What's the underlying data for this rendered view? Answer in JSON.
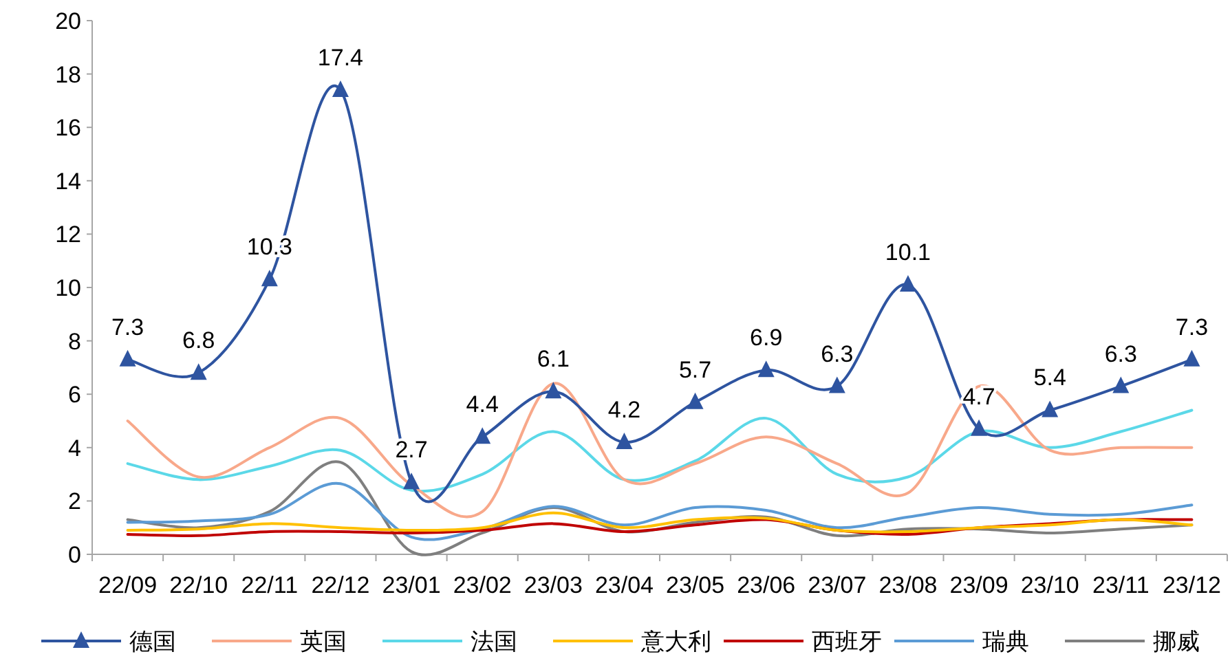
{
  "chart_data": {
    "type": "line",
    "categories": [
      "22/09",
      "22/10",
      "22/11",
      "22/12",
      "23/01",
      "23/02",
      "23/03",
      "23/04",
      "23/05",
      "23/06",
      "23/07",
      "23/08",
      "23/09",
      "23/10",
      "23/11",
      "23/12"
    ],
    "ylim": [
      0,
      20
    ],
    "yticks": [
      0,
      2,
      4,
      6,
      8,
      10,
      12,
      14,
      16,
      18,
      20
    ],
    "grid": false,
    "legend": "bottom",
    "line_style": "solid",
    "series": [
      {
        "name": "德国",
        "color": "#2e54a0",
        "marker": "triangle",
        "data_labels": true,
        "values": [
          7.3,
          6.8,
          10.3,
          17.4,
          2.7,
          4.4,
          6.1,
          4.2,
          5.7,
          6.9,
          6.3,
          10.1,
          4.7,
          5.4,
          6.3,
          7.3
        ]
      },
      {
        "name": "英国",
        "color": "#f8a88a",
        "marker": "none",
        "values": [
          5.0,
          2.9,
          4.0,
          5.1,
          2.6,
          1.6,
          6.4,
          2.8,
          3.4,
          4.4,
          3.4,
          2.3,
          6.3,
          3.9,
          4.0,
          4.0
        ]
      },
      {
        "name": "法国",
        "color": "#5bd8e8",
        "marker": "none",
        "values": [
          3.4,
          2.8,
          3.3,
          3.9,
          2.4,
          3.0,
          4.6,
          2.8,
          3.5,
          5.1,
          3.0,
          2.9,
          4.6,
          4.0,
          4.6,
          5.4
        ]
      },
      {
        "name": "意大利",
        "color": "#ffc000",
        "marker": "none",
        "values": [
          0.9,
          0.95,
          1.15,
          1.0,
          0.9,
          1.0,
          1.55,
          1.0,
          1.3,
          1.35,
          0.9,
          0.85,
          1.0,
          1.1,
          1.3,
          1.1
        ]
      },
      {
        "name": "西班牙",
        "color": "#c00000",
        "marker": "none",
        "values": [
          0.75,
          0.7,
          0.85,
          0.85,
          0.8,
          0.9,
          1.15,
          0.85,
          1.1,
          1.3,
          0.9,
          0.75,
          1.0,
          1.15,
          1.3,
          1.3
        ]
      },
      {
        "name": "瑞典",
        "color": "#5b9bd5",
        "marker": "none",
        "values": [
          1.2,
          1.25,
          1.5,
          2.65,
          0.65,
          0.95,
          1.8,
          1.1,
          1.75,
          1.65,
          1.0,
          1.4,
          1.75,
          1.5,
          1.5,
          1.85
        ]
      },
      {
        "name": "挪威",
        "color": "#7f7f7f",
        "marker": "none",
        "values": [
          1.3,
          1.0,
          1.6,
          3.45,
          0.1,
          0.8,
          1.75,
          0.85,
          1.2,
          1.4,
          0.7,
          0.95,
          0.95,
          0.8,
          0.95,
          1.1
        ]
      }
    ]
  }
}
